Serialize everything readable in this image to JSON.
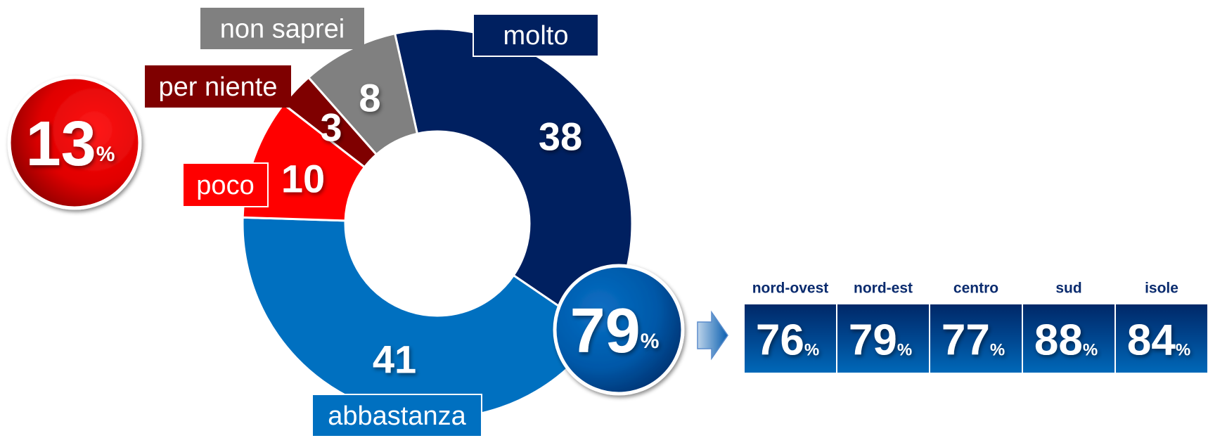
{
  "chart_data": {
    "type": "donut",
    "categories": [
      "molto",
      "abbastanza",
      "poco",
      "per niente",
      "non saprei"
    ],
    "values": [
      38,
      41,
      10,
      3,
      8
    ],
    "colors": [
      "#002060",
      "#0070c0",
      "#ff0000",
      "#7f0000",
      "#808080"
    ],
    "unit": "%",
    "summary_values": [
      13,
      79
    ],
    "regions": {
      "categories": [
        "nord-ovest",
        "nord-est",
        "centro",
        "sud",
        "isole"
      ],
      "values": [
        76,
        79,
        77,
        88,
        84
      ]
    }
  }
}
